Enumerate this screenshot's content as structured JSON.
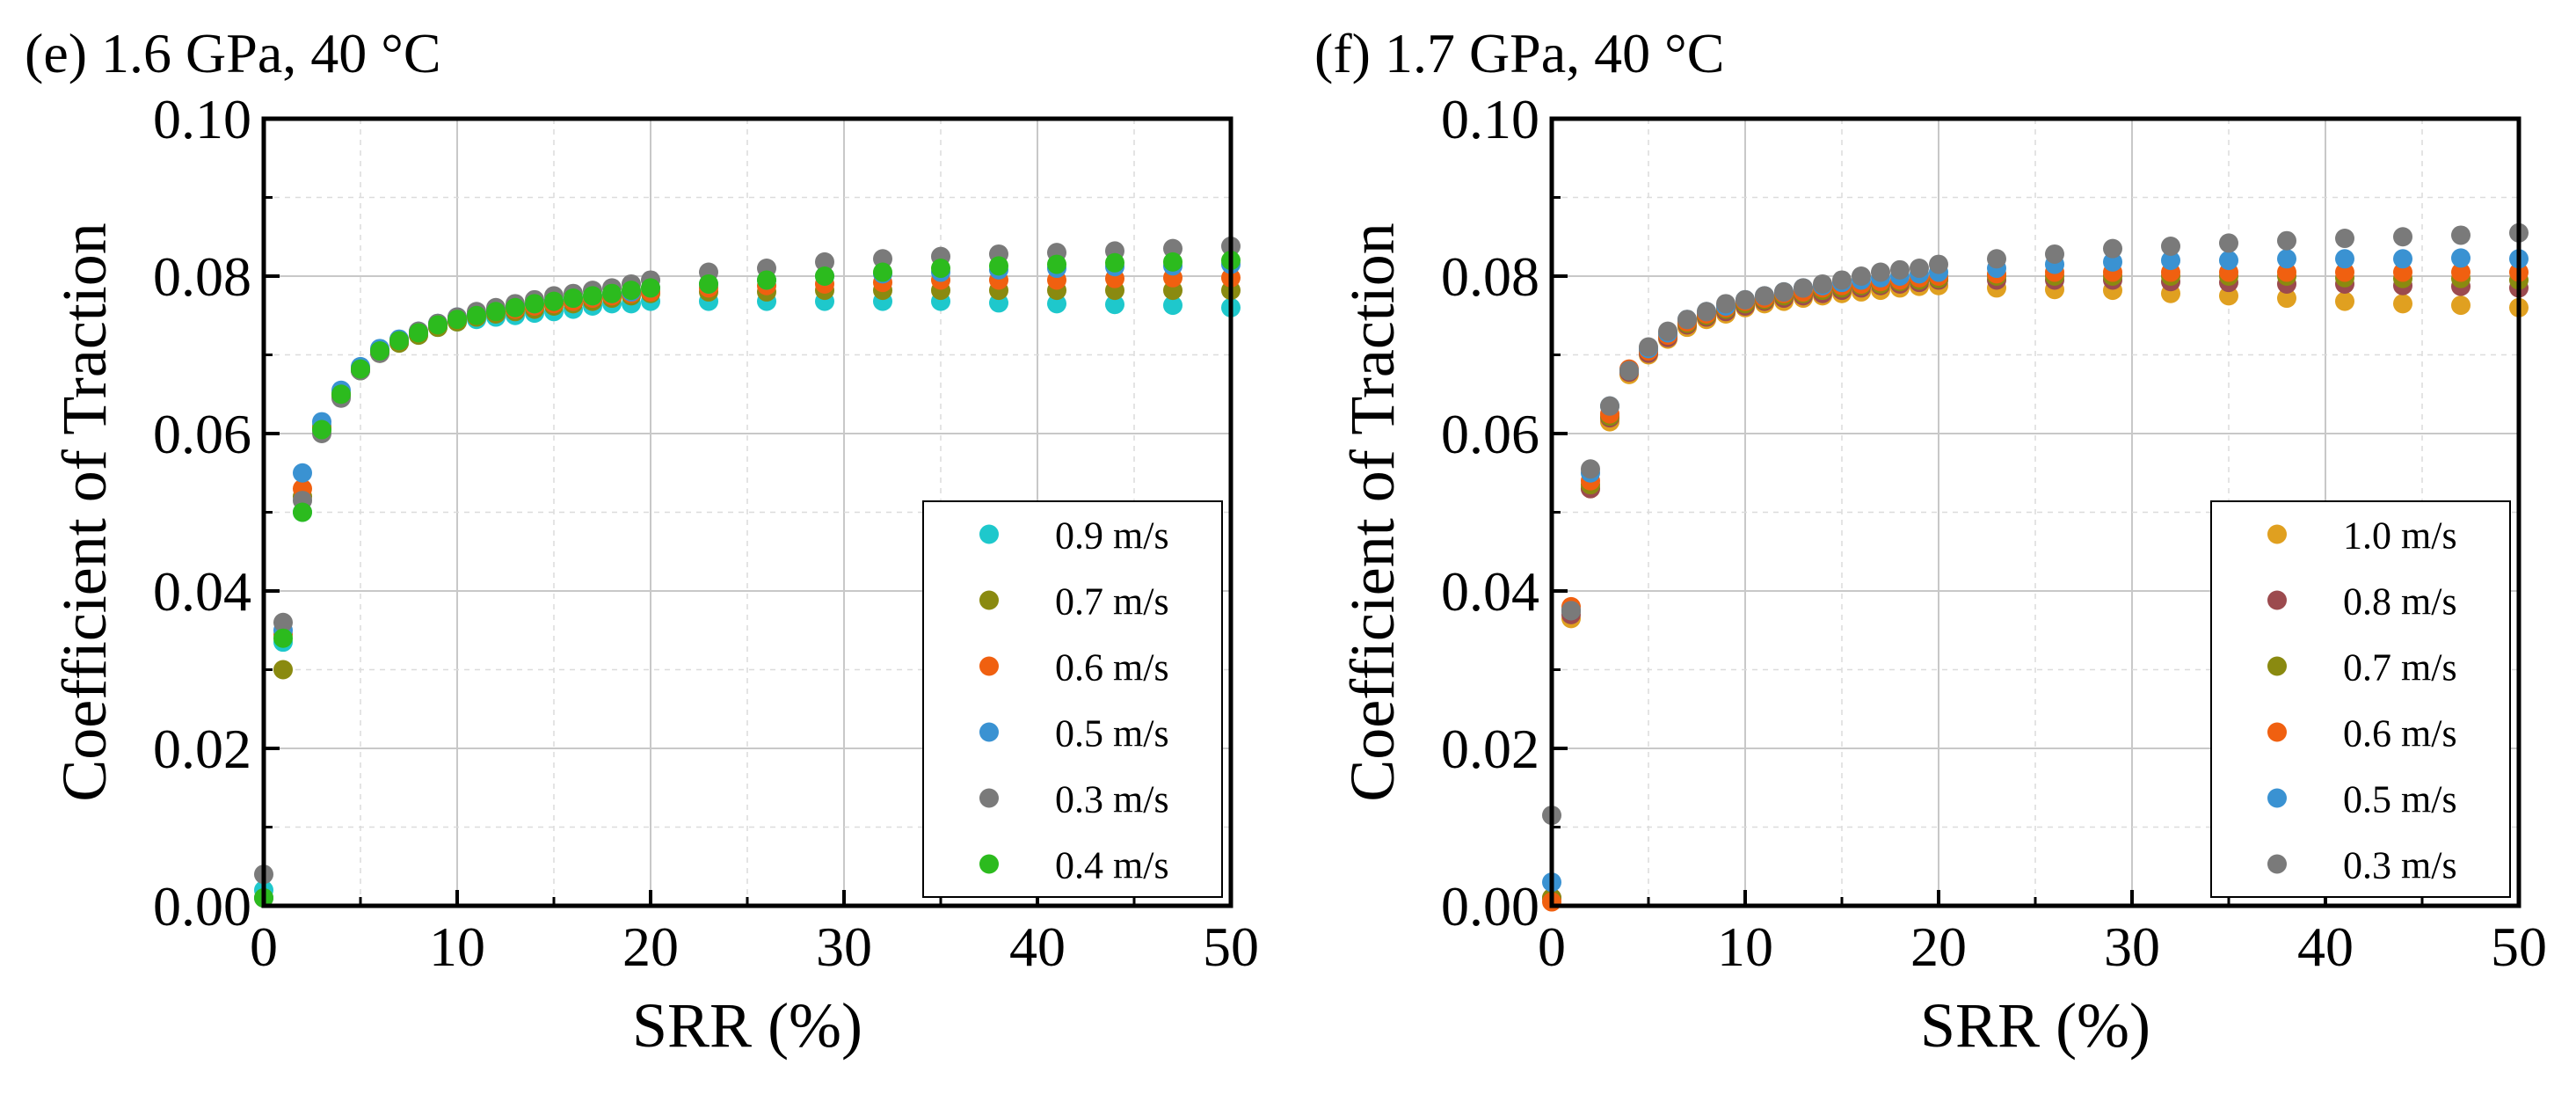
{
  "figure": {
    "panel_count": 2
  },
  "chart_data": [
    {
      "type": "scatter",
      "title": "(e) 1.6 GPa, 40 °C",
      "xlabel": "SRR (%)",
      "ylabel": "Coefficient of Traction",
      "xlim": [
        0,
        50
      ],
      "ylim": [
        0,
        0.1
      ],
      "xticks": [
        0,
        10,
        20,
        30,
        40,
        50
      ],
      "yticks": [
        0.0,
        0.02,
        0.04,
        0.06,
        0.08,
        0.1
      ],
      "ytick_labels": [
        "0.00",
        "0.02",
        "0.04",
        "0.06",
        "0.08",
        "0.10"
      ],
      "grid": true,
      "legend": "lower-right",
      "x": [
        0,
        1,
        2,
        3,
        4,
        5,
        6,
        7,
        8,
        9,
        10,
        11,
        12,
        13,
        14,
        15,
        16,
        17,
        18,
        19,
        20,
        23,
        26,
        29,
        32,
        35,
        38,
        41,
        44,
        47,
        50
      ],
      "series": [
        {
          "name": "0.9 m/s",
          "color": "#1ec8cc",
          "values": [
            0.002,
            0.0335,
            0.05,
            0.061,
            0.065,
            0.068,
            0.0705,
            0.0715,
            0.0725,
            0.0735,
            0.0742,
            0.0745,
            0.0748,
            0.075,
            0.0753,
            0.0755,
            0.0758,
            0.0762,
            0.0765,
            0.0765,
            0.0768,
            0.0768,
            0.0768,
            0.0768,
            0.0768,
            0.0768,
            0.0766,
            0.0765,
            0.0764,
            0.0763,
            0.076
          ]
        },
        {
          "name": "0.7 m/s",
          "color": "#8a8a10",
          "values": [
            0.001,
            0.03,
            0.052,
            0.0605,
            0.0648,
            0.068,
            0.0702,
            0.0715,
            0.0725,
            0.0735,
            0.0742,
            0.0748,
            0.0752,
            0.0755,
            0.0758,
            0.0762,
            0.0765,
            0.0768,
            0.0772,
            0.0775,
            0.0778,
            0.078,
            0.078,
            0.0782,
            0.0782,
            0.0782,
            0.0782,
            0.0782,
            0.0782,
            0.0782,
            0.0782
          ]
        },
        {
          "name": "0.6 m/s",
          "color": "#f06010",
          "values": [
            0.001,
            0.0345,
            0.053,
            0.0608,
            0.065,
            0.0682,
            0.0705,
            0.0718,
            0.0728,
            0.0738,
            0.0745,
            0.075,
            0.0755,
            0.0758,
            0.0762,
            0.0765,
            0.0768,
            0.0772,
            0.0775,
            0.0778,
            0.078,
            0.0785,
            0.0788,
            0.079,
            0.0792,
            0.0795,
            0.0795,
            0.0795,
            0.0797,
            0.0798,
            0.0798
          ]
        },
        {
          "name": "0.5 m/s",
          "color": "#3a92d2",
          "values": [
            0.001,
            0.035,
            0.055,
            0.0615,
            0.0655,
            0.0685,
            0.0708,
            0.072,
            0.073,
            0.074,
            0.0748,
            0.0752,
            0.0758,
            0.0762,
            0.0765,
            0.077,
            0.0772,
            0.0775,
            0.0778,
            0.078,
            0.0785,
            0.079,
            0.0795,
            0.08,
            0.0803,
            0.0805,
            0.0808,
            0.081,
            0.0812,
            0.0813,
            0.0815
          ]
        },
        {
          "name": "0.3 m/s",
          "color": "#7a7a7a",
          "values": [
            0.004,
            0.036,
            0.0515,
            0.06,
            0.0645,
            0.068,
            0.0702,
            0.0718,
            0.073,
            0.074,
            0.0748,
            0.0755,
            0.076,
            0.0765,
            0.077,
            0.0775,
            0.0778,
            0.0782,
            0.0785,
            0.079,
            0.0795,
            0.0805,
            0.081,
            0.0818,
            0.0822,
            0.0825,
            0.0828,
            0.083,
            0.0832,
            0.0835,
            0.0838
          ]
        },
        {
          "name": "0.4 m/s",
          "color": "#2cbb1e",
          "values": [
            0.001,
            0.034,
            0.05,
            0.0605,
            0.065,
            0.0682,
            0.0705,
            0.0718,
            0.0728,
            0.0738,
            0.0745,
            0.075,
            0.0755,
            0.076,
            0.0765,
            0.0768,
            0.0772,
            0.0775,
            0.0778,
            0.0782,
            0.0785,
            0.079,
            0.0795,
            0.08,
            0.0805,
            0.081,
            0.0813,
            0.0815,
            0.0817,
            0.0818,
            0.082
          ]
        }
      ]
    },
    {
      "type": "scatter",
      "title": "(f) 1.7 GPa, 40 °C",
      "xlabel": "SRR (%)",
      "ylabel": "Coefficient of Traction",
      "xlim": [
        0,
        50
      ],
      "ylim": [
        0,
        0.1
      ],
      "xticks": [
        0,
        10,
        20,
        30,
        40,
        50
      ],
      "yticks": [
        0.0,
        0.02,
        0.04,
        0.06,
        0.08,
        0.1
      ],
      "ytick_labels": [
        "0.00",
        "0.02",
        "0.04",
        "0.06",
        "0.08",
        "0.10"
      ],
      "grid": true,
      "legend": "lower-right",
      "x": [
        0,
        1,
        2,
        3,
        4,
        5,
        6,
        7,
        8,
        9,
        10,
        11,
        12,
        13,
        14,
        15,
        16,
        17,
        18,
        19,
        20,
        23,
        26,
        29,
        32,
        35,
        38,
        41,
        44,
        47,
        50
      ],
      "series": [
        {
          "name": "1.0 m/s",
          "color": "#e0a020",
          "values": [
            0.001,
            0.0365,
            0.053,
            0.0615,
            0.0675,
            0.07,
            0.072,
            0.0735,
            0.0745,
            0.0752,
            0.076,
            0.0765,
            0.0768,
            0.0772,
            0.0775,
            0.0778,
            0.078,
            0.0782,
            0.0785,
            0.0787,
            0.0788,
            0.0785,
            0.0783,
            0.0782,
            0.0778,
            0.0775,
            0.0772,
            0.0768,
            0.0765,
            0.0763,
            0.076
          ]
        },
        {
          "name": "0.8 m/s",
          "color": "#9c4a4e",
          "values": [
            0.001,
            0.037,
            0.053,
            0.062,
            0.0678,
            0.0702,
            0.0722,
            0.0738,
            0.0748,
            0.0755,
            0.0762,
            0.0768,
            0.0772,
            0.0775,
            0.0778,
            0.0782,
            0.0785,
            0.0788,
            0.079,
            0.0792,
            0.0795,
            0.0795,
            0.0795,
            0.0795,
            0.0793,
            0.0792,
            0.079,
            0.079,
            0.0788,
            0.0787,
            0.0785
          ]
        },
        {
          "name": "0.7 m/s",
          "color": "#8a8a10",
          "values": [
            0.001,
            0.0375,
            0.0535,
            0.0622,
            0.068,
            0.0705,
            0.0725,
            0.074,
            0.075,
            0.0758,
            0.0765,
            0.077,
            0.0775,
            0.0778,
            0.0782,
            0.0785,
            0.0788,
            0.079,
            0.0793,
            0.0795,
            0.0797,
            0.08,
            0.08,
            0.08,
            0.08,
            0.08,
            0.08,
            0.0798,
            0.0797,
            0.0797,
            0.0795
          ]
        },
        {
          "name": "0.6 m/s",
          "color": "#f06010",
          "values": [
            0.0005,
            0.038,
            0.054,
            0.0625,
            0.0682,
            0.0705,
            0.0725,
            0.0742,
            0.0752,
            0.076,
            0.0768,
            0.0772,
            0.0778,
            0.078,
            0.0785,
            0.0788,
            0.079,
            0.0793,
            0.0795,
            0.0798,
            0.08,
            0.0803,
            0.0805,
            0.0805,
            0.0805,
            0.0805,
            0.0805,
            0.0805,
            0.0805,
            0.0805,
            0.0805
          ]
        },
        {
          "name": "0.5 m/s",
          "color": "#3a92d2",
          "values": [
            0.003,
            0.0375,
            0.055,
            0.0635,
            0.068,
            0.0708,
            0.0728,
            0.0745,
            0.0755,
            0.0762,
            0.077,
            0.0775,
            0.078,
            0.0785,
            0.0788,
            0.0792,
            0.0795,
            0.0798,
            0.08,
            0.0803,
            0.0805,
            0.081,
            0.0815,
            0.0818,
            0.082,
            0.082,
            0.0822,
            0.0822,
            0.0822,
            0.0823,
            0.0822
          ]
        },
        {
          "name": "0.3 m/s",
          "color": "#7a7a7a",
          "values": [
            0.0115,
            0.0375,
            0.0555,
            0.0635,
            0.068,
            0.071,
            0.073,
            0.0745,
            0.0755,
            0.0765,
            0.077,
            0.0775,
            0.078,
            0.0785,
            0.079,
            0.0795,
            0.08,
            0.0805,
            0.0808,
            0.081,
            0.0815,
            0.0822,
            0.0828,
            0.0835,
            0.0838,
            0.0842,
            0.0845,
            0.0848,
            0.085,
            0.0852,
            0.0855
          ]
        }
      ]
    }
  ]
}
